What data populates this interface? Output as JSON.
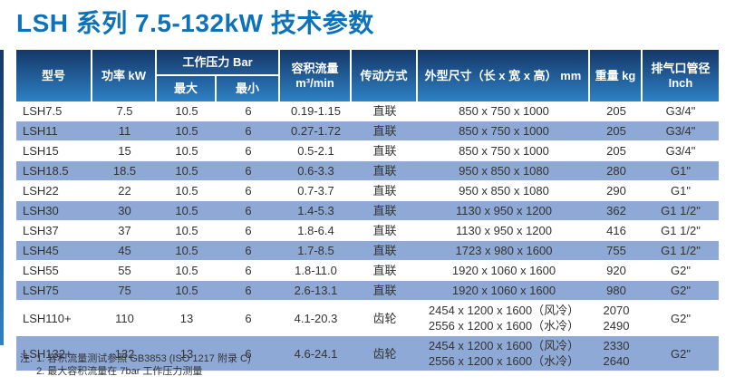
{
  "title": "LSH 系列 7.5-132kW 技术参数",
  "colors": {
    "title_color": "#0d72b9",
    "header_top": "#153768",
    "header_bottom": "#2e81c5",
    "stripe": "#8fa9d6",
    "text": "#333333"
  },
  "table": {
    "headers": {
      "model": "型号",
      "power": "功率\nkW",
      "pressure_group": "工作压力 Bar",
      "pressure_max": "最大",
      "pressure_min": "最小",
      "flow": "容积流量\nm³/min",
      "drive": "传动方式",
      "dims": "外型尺寸（长 x 宽 x 高）\nmm",
      "weight": "重量\nkg",
      "outlet": "排气口管径\nInch"
    },
    "rows": [
      {
        "model": "LSH7.5",
        "power": "7.5",
        "pmax": "10.5",
        "pmin": "6",
        "flow": "0.19-1.15",
        "drive": "直联",
        "dims": "850 x 750 x 1000",
        "weight": "205",
        "outlet": "G3/4\""
      },
      {
        "model": "LSH11",
        "power": "11",
        "pmax": "10.5",
        "pmin": "6",
        "flow": "0.27-1.72",
        "drive": "直联",
        "dims": "850 x 750 x 1000",
        "weight": "205",
        "outlet": "G3/4\""
      },
      {
        "model": "LSH15",
        "power": "15",
        "pmax": "10.5",
        "pmin": "6",
        "flow": "0.5-2.1",
        "drive": "直联",
        "dims": "850 x 750 x 1000",
        "weight": "205",
        "outlet": "G3/4\""
      },
      {
        "model": "LSH18.5",
        "power": "18.5",
        "pmax": "10.5",
        "pmin": "6",
        "flow": "0.6-3.3",
        "drive": "直联",
        "dims": "950 x 850 x 1080",
        "weight": "280",
        "outlet": "G1\""
      },
      {
        "model": "LSH22",
        "power": "22",
        "pmax": "10.5",
        "pmin": "6",
        "flow": "0.7-3.7",
        "drive": "直联",
        "dims": "950 x 850 x 1080",
        "weight": "290",
        "outlet": "G1\""
      },
      {
        "model": "LSH30",
        "power": "30",
        "pmax": "10.5",
        "pmin": "6",
        "flow": "1.4-5.3",
        "drive": "直联",
        "dims": "1130 x 950 x 1200",
        "weight": "362",
        "outlet": "G1 1/2\""
      },
      {
        "model": "LSH37",
        "power": "37",
        "pmax": "10.5",
        "pmin": "6",
        "flow": "1.8-6.4",
        "drive": "直联",
        "dims": "1130 x 950 x 1200",
        "weight": "416",
        "outlet": "G1 1/2\""
      },
      {
        "model": "LSH45",
        "power": "45",
        "pmax": "10.5",
        "pmin": "6",
        "flow": "1.7-8.5",
        "drive": "直联",
        "dims": "1723 x 980 x 1600",
        "weight": "755",
        "outlet": "G1 1/2\""
      },
      {
        "model": "LSH55",
        "power": "55",
        "pmax": "10.5",
        "pmin": "6",
        "flow": "1.8-11.0",
        "drive": "直联",
        "dims": "1920 x 1060 x 1600",
        "weight": "920",
        "outlet": "G2\""
      },
      {
        "model": "LSH75",
        "power": "75",
        "pmax": "10.5",
        "pmin": "6",
        "flow": "2.6-13.1",
        "drive": "直联",
        "dims": "1920 x 1060 x 1600",
        "weight": "980",
        "outlet": "G2\""
      },
      {
        "model": "LSH110+",
        "power": "110",
        "pmax": "13",
        "pmin": "6",
        "flow": "4.1-20.3",
        "drive": "齿轮",
        "dims": "2454 x 1200 x 1600（风冷）\n2556 x 1200 x 1600（水冷）",
        "weight": "2070\n2490",
        "outlet": "G2\""
      },
      {
        "model": "LSH132+",
        "power": "132",
        "pmax": "13",
        "pmin": "6",
        "flow": "4.6-24.1",
        "drive": "齿轮",
        "dims": "2454 x 1200 x 1600（风冷）\n2556 x 1200 x 1600（水冷）",
        "weight": "2330\n2640",
        "outlet": "G2\""
      }
    ]
  },
  "notes": {
    "label": "注:",
    "items": [
      "1. 容积流量测试参照 GB3853 (ISO 1217 附录 C)",
      "2. 最大容积流量在 7bar 工作压力测量"
    ]
  }
}
